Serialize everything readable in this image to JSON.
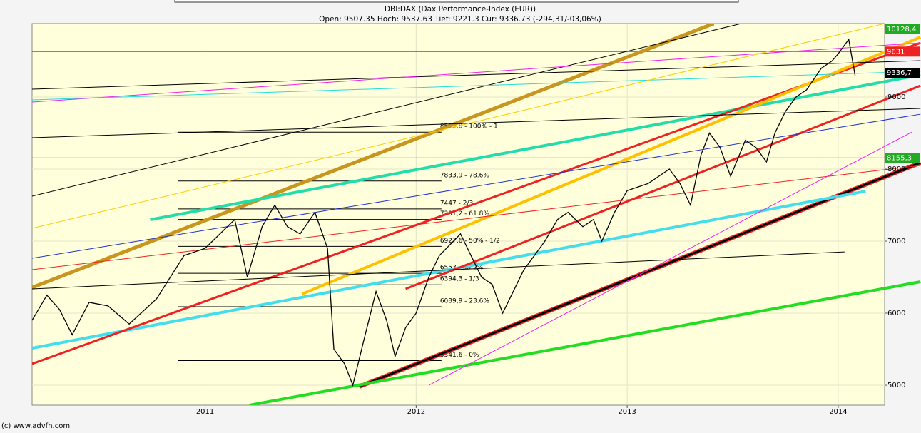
{
  "chart_data": {
    "type": "line",
    "title": "DBI:DAX (Dax Performance-Index (EUR))",
    "subtitle": "Open: 9507.35 Hoch: 9537.63 Tief: 9221.3 Cur: 9336.73 (-294,31/-03,06%)",
    "source": "(c) www.advfn.com",
    "color": "#000000",
    "x": [
      2010.18,
      2010.25,
      2010.31,
      2010.37,
      2010.45,
      2010.54,
      2010.64,
      2010.77,
      2010.9,
      2011.0,
      2011.07,
      2011.14,
      2011.2,
      2011.27,
      2011.33,
      2011.39,
      2011.45,
      2011.52,
      2011.58,
      2011.61,
      2011.66,
      2011.7,
      2011.75,
      2011.81,
      2011.86,
      2011.9,
      2011.95,
      2012.0,
      2012.06,
      2012.11,
      2012.16,
      2012.21,
      2012.26,
      2012.31,
      2012.36,
      2012.41,
      2012.46,
      2012.51,
      2012.56,
      2012.61,
      2012.67,
      2012.72,
      2012.79,
      2012.84,
      2012.88,
      2012.94,
      2013.0,
      2013.05,
      2013.1,
      2013.15,
      2013.2,
      2013.25,
      2013.3,
      2013.35,
      2013.39,
      2013.44,
      2013.49,
      2013.56,
      2013.61,
      2013.66,
      2013.7,
      2013.75,
      2013.8,
      2013.85,
      2013.92,
      2013.97,
      2014.0,
      2014.05,
      2014.08
    ],
    "values": [
      5900,
      6250,
      6050,
      5700,
      6150,
      6100,
      5850,
      6200,
      6800,
      6900,
      7100,
      7300,
      6500,
      7200,
      7500,
      7200,
      7100,
      7400,
      6900,
      5500,
      5300,
      5000,
      5600,
      6300,
      5900,
      5400,
      5800,
      6000,
      6500,
      6800,
      6950,
      7100,
      6800,
      6500,
      6400,
      6000,
      6300,
      6600,
      6800,
      7000,
      7300,
      7400,
      7200,
      7300,
      7000,
      7400,
      7700,
      7750,
      7800,
      7900,
      8000,
      7800,
      7500,
      8200,
      8500,
      8300,
      7900,
      8400,
      8300,
      8100,
      8500,
      8800,
      9000,
      9100,
      9400,
      9500,
      9600,
      9800,
      9300
    ],
    "xlim": [
      2010.18,
      2014.22
    ],
    "ylim": [
      4723,
      10020
    ],
    "xticks": [
      2011,
      2012,
      2013,
      2014
    ],
    "yticks": [
      5000,
      6000,
      7000,
      8000,
      9000
    ],
    "grid": true,
    "fib_x": [
      2010.87,
      2012.12
    ],
    "fib_levels": [
      {
        "value": 8512.8,
        "label": "8512,8 - 100% - 1"
      },
      {
        "value": 7833.9,
        "label": "7833,9 - 78.6%"
      },
      {
        "value": 7447,
        "label": "7447 - 2/3"
      },
      {
        "value": 7301.2,
        "label": "7301,2 - 61.8%"
      },
      {
        "value": 6927.6,
        "label": "6927,6 - 50% - 1/2"
      },
      {
        "value": 6553,
        "label": "6553 - 38.2%"
      },
      {
        "value": 6394.3,
        "label": "6394,3 - 1/3"
      },
      {
        "value": 6089.9,
        "label": "6089,9 - 23.6%"
      },
      {
        "value": 5341.6,
        "label": "5341,6 - 0%"
      }
    ],
    "hlines": [
      {
        "value": 9631,
        "color": "#ee2222"
      },
      {
        "value": 8155.3,
        "color": "#2233cc"
      }
    ],
    "price_boxes": [
      {
        "value": 10128.4,
        "label": "10128,4",
        "color": "#22aa22"
      },
      {
        "value": 9631,
        "label": "9631",
        "color": "#ee2222"
      },
      {
        "value": 9336.7,
        "label": "9336,7",
        "color": "#000000"
      },
      {
        "value": 8155.3,
        "label": "8155,3",
        "color": "#22aa22"
      }
    ],
    "trendlines": [
      {
        "color": "#c8961e",
        "width": 5,
        "x": [
          2010.18,
          2013.41
        ],
        "y": [
          6356,
          10020
        ]
      },
      {
        "color": "#ee2222",
        "width": 6,
        "x": [
          2011.73,
          2014.39
        ],
        "y": [
          4980,
          8089
        ]
      },
      {
        "color": "#000000",
        "width": 3,
        "x": [
          2011.73,
          2014.39
        ],
        "y": [
          4980,
          8089
        ]
      },
      {
        "color": "#22dd22",
        "width": 4,
        "x": [
          2011.21,
          2014.39
        ],
        "y": [
          4723,
          6436
        ]
      },
      {
        "color": "#44ddee",
        "width": 4,
        "x": [
          2010.18,
          2014.13
        ],
        "y": [
          5515,
          7693
        ]
      },
      {
        "color": "#22ddaa",
        "width": 4,
        "x": [
          2010.74,
          2014.39
        ],
        "y": [
          7297,
          9307
        ]
      },
      {
        "color": "#ee2222",
        "width": 3,
        "x": [
          2010.18,
          2014.39
        ],
        "y": [
          5297,
          9752
        ]
      },
      {
        "color": "#ee2222",
        "width": 3,
        "x": [
          2011.95,
          2014.39
        ],
        "y": [
          6337,
          9158
        ]
      },
      {
        "color": "#ffc000",
        "width": 4,
        "x": [
          2011.46,
          2014.39
        ],
        "y": [
          6267,
          9832
        ]
      },
      {
        "color": "#000000",
        "width": 1,
        "x": [
          2010.18,
          2013.54
        ],
        "y": [
          7624,
          10020
        ]
      },
      {
        "color": "#000000",
        "width": 1,
        "x": [
          2010.18,
          2014.39
        ],
        "y": [
          8436,
          8842
        ]
      },
      {
        "color": "#000000",
        "width": 1,
        "x": [
          2010.18,
          2014.39
        ],
        "y": [
          9109,
          9505
        ]
      },
      {
        "color": "#ee22ee",
        "width": 1,
        "x": [
          2010.18,
          2014.39
        ],
        "y": [
          8931,
          9752
        ]
      },
      {
        "color": "#22dddd",
        "width": 1,
        "x": [
          2010.18,
          2014.39
        ],
        "y": [
          8960,
          9356
        ]
      },
      {
        "color": "#2233cc",
        "width": 1,
        "x": [
          2010.18,
          2014.39
        ],
        "y": [
          6762,
          8762
        ]
      },
      {
        "color": "#ee2222",
        "width": 1,
        "x": [
          2010.18,
          2014.39
        ],
        "y": [
          6604,
          8050
        ]
      },
      {
        "color": "#ffcc00",
        "width": 1,
        "x": [
          2010.18,
          2014.22
        ],
        "y": [
          7178,
          10020
        ]
      },
      {
        "color": "#000000",
        "width": 1,
        "x": [
          2010.18,
          2014.03
        ],
        "y": [
          6337,
          6851
        ]
      },
      {
        "color": "#ee22ee",
        "width": 1,
        "x": [
          2012.06,
          2014.35
        ],
        "y": [
          5000,
          8515
        ]
      }
    ]
  }
}
